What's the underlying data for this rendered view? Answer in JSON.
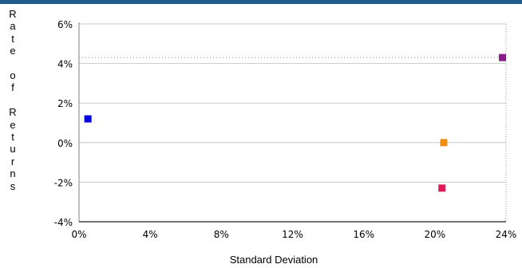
{
  "chart_data": {
    "type": "scatter",
    "title": "",
    "xlabel": "Standard Deviation",
    "ylabel": "Rate of Returns",
    "x_tick_labels": [
      "0%",
      "4%",
      "8%",
      "12%",
      "16%",
      "20%",
      "24%"
    ],
    "y_tick_labels": [
      "6%",
      "4%",
      "2%",
      "0%",
      "-2%",
      "-4%"
    ],
    "xlim": [
      0,
      24
    ],
    "ylim": [
      -4,
      6
    ],
    "grid": "horizontal",
    "reference_line": {
      "y": 4.3,
      "style": "dotted"
    },
    "points": [
      {
        "x": 0.5,
        "y": 1.2,
        "color": "#0000e0"
      },
      {
        "x": 20.5,
        "y": 0.0,
        "color": "#f28c0f"
      },
      {
        "x": 20.4,
        "y": -2.3,
        "color": "#e0185a"
      },
      {
        "x": 23.8,
        "y": 4.3,
        "color": "#8b1a8b"
      }
    ]
  },
  "colors": {
    "top_bar": "#1f5c87",
    "grid": "#c8c8c8",
    "axis": "#808080"
  }
}
